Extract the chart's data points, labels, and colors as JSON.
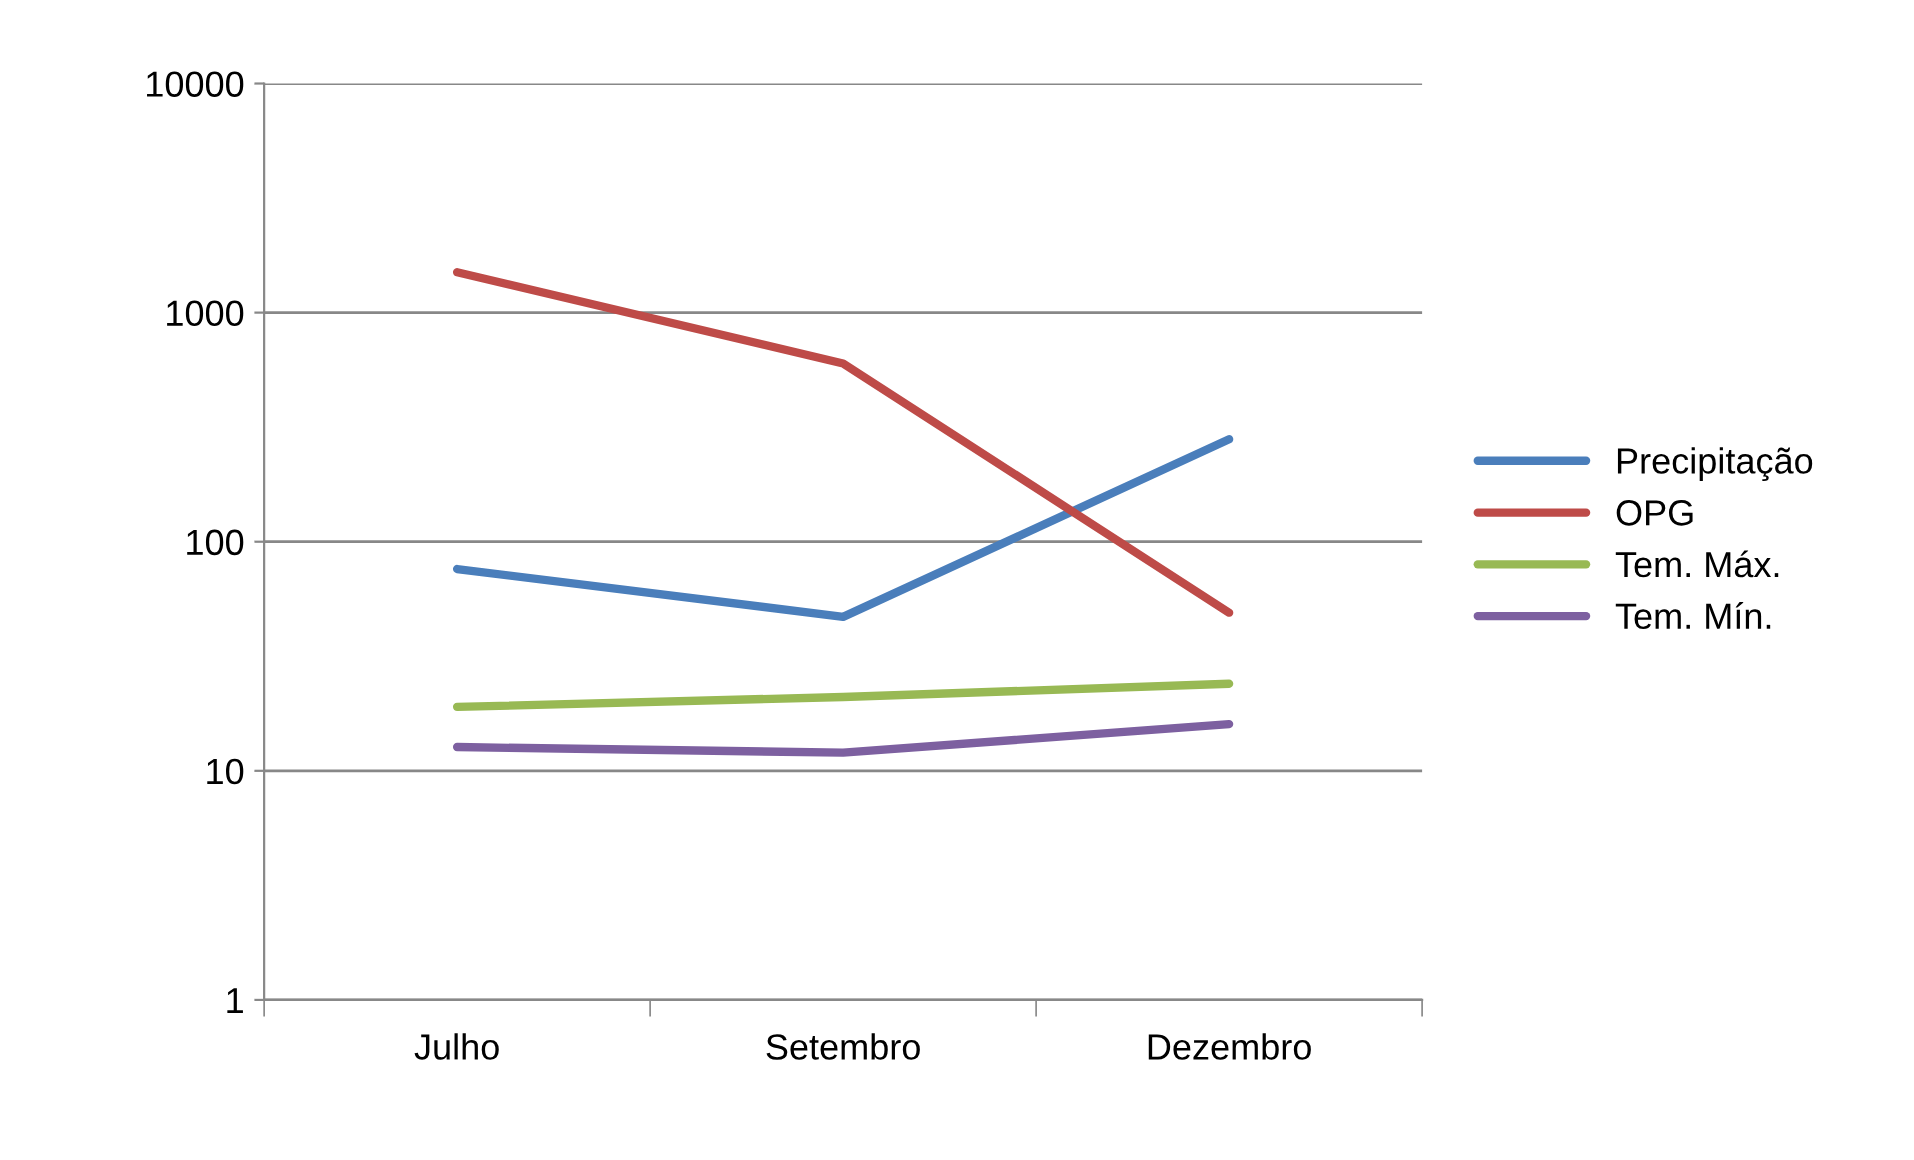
{
  "chart_data": {
    "type": "line",
    "categories": [
      "Julho",
      "Setembro",
      "Dezembro"
    ],
    "series": [
      {
        "name": "Precipitação",
        "color": "#4a7ebb",
        "values": [
          76,
          47,
          280
        ]
      },
      {
        "name": "OPG",
        "color": "#be4b48",
        "values": [
          1500,
          600,
          49
        ]
      },
      {
        "name": "Tem. Máx.",
        "color": "#98b954",
        "values": [
          19,
          21,
          24
        ]
      },
      {
        "name": "Tem. Mín.",
        "color": "#7d60a0",
        "values": [
          12.7,
          12,
          16
        ]
      }
    ],
    "log": "y",
    "ylim": [
      1,
      10000
    ],
    "yticks": [
      1,
      10,
      100,
      1000,
      10000
    ],
    "grid": "y",
    "legend": "right",
    "marker": "none",
    "line_style": "solid"
  }
}
